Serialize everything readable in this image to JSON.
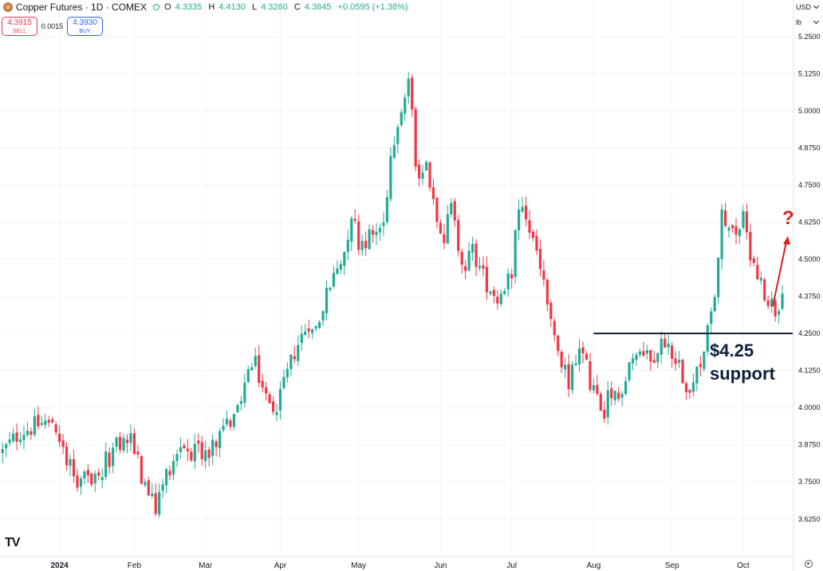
{
  "header": {
    "title": "Copper Futures · 1D · COMEX",
    "open_label": "O",
    "open": "4.3335",
    "high_label": "H",
    "high": "4.4130",
    "low_label": "L",
    "low": "4.3260",
    "close_label": "C",
    "close": "4.3845",
    "change": "+0.0595 (+1.38%)"
  },
  "trade": {
    "sell_price": "4.3915",
    "sell_label": "SELL",
    "spread": "0.0015",
    "buy_price": "4.3930",
    "buy_label": "BUY"
  },
  "controls": {
    "currency": "USD",
    "unit": "lb"
  },
  "colors": {
    "up": "#22ab94",
    "down": "#f23645",
    "grid": "#f0f3fa",
    "support": "#0d1f3c",
    "arrow": "#e21d1d"
  },
  "chart_data": {
    "type": "candlestick",
    "ylim": [
      3.58,
      5.275
    ],
    "y_ticks": [
      "5.2500",
      "5.1250",
      "5.0000",
      "4.8750",
      "4.7500",
      "4.6250",
      "4.5000",
      "4.3750",
      "4.2500",
      "4.1250",
      "4.0000",
      "3.8750",
      "3.7500",
      "3.6250"
    ],
    "x_labels": [
      {
        "label": "2024",
        "idx": 16,
        "bold": true
      },
      {
        "label": "Feb",
        "idx": 37
      },
      {
        "label": "Mar",
        "idx": 57
      },
      {
        "label": "Apr",
        "idx": 78
      },
      {
        "label": "May",
        "idx": 100
      },
      {
        "label": "Jun",
        "idx": 123
      },
      {
        "label": "Jul",
        "idx": 143
      },
      {
        "label": "Aug",
        "idx": 166
      },
      {
        "label": "Sep",
        "idx": 188
      },
      {
        "label": "Oct",
        "idx": 208
      }
    ],
    "support": {
      "value": 4.25,
      "from_idx": 166,
      "label_line1": "$4.25",
      "label_line2": "support"
    },
    "annotation": {
      "text": "?",
      "color": "#e21d1d"
    },
    "anchors": [
      [
        0,
        3.85
      ],
      [
        5,
        3.92
      ],
      [
        12,
        3.95
      ],
      [
        16,
        3.89
      ],
      [
        22,
        3.74
      ],
      [
        28,
        3.8
      ],
      [
        32,
        3.87
      ],
      [
        36,
        3.9
      ],
      [
        40,
        3.73
      ],
      [
        43,
        3.66
      ],
      [
        46,
        3.78
      ],
      [
        50,
        3.88
      ],
      [
        52,
        3.86
      ],
      [
        56,
        3.84
      ],
      [
        61,
        3.9
      ],
      [
        66,
        4.0
      ],
      [
        69,
        4.12
      ],
      [
        71,
        4.14
      ],
      [
        73,
        4.07
      ],
      [
        75,
        4.0
      ],
      [
        78,
        4.03
      ],
      [
        82,
        4.19
      ],
      [
        86,
        4.29
      ],
      [
        88,
        4.27
      ],
      [
        92,
        4.41
      ],
      [
        96,
        4.53
      ],
      [
        98,
        4.66
      ],
      [
        100,
        4.56
      ],
      [
        104,
        4.58
      ],
      [
        107,
        4.62
      ],
      [
        109,
        4.85
      ],
      [
        111,
        4.98
      ],
      [
        113,
        5.05
      ],
      [
        114,
        5.11
      ],
      [
        116,
        4.84
      ],
      [
        118,
        4.77
      ],
      [
        119,
        4.86
      ],
      [
        120,
        4.75
      ],
      [
        122,
        4.66
      ],
      [
        124,
        4.58
      ],
      [
        126,
        4.67
      ],
      [
        128,
        4.55
      ],
      [
        130,
        4.48
      ],
      [
        132,
        4.53
      ],
      [
        135,
        4.44
      ],
      [
        139,
        4.37
      ],
      [
        141,
        4.41
      ],
      [
        143,
        4.47
      ],
      [
        145,
        4.67
      ],
      [
        148,
        4.6
      ],
      [
        152,
        4.43
      ],
      [
        154,
        4.27
      ],
      [
        157,
        4.14
      ],
      [
        159,
        4.09
      ],
      [
        161,
        4.16
      ],
      [
        163,
        4.18
      ],
      [
        165,
        4.09
      ],
      [
        167,
        4.03
      ],
      [
        169,
        3.93
      ],
      [
        170,
        4.03
      ],
      [
        173,
        4.03
      ],
      [
        176,
        4.16
      ],
      [
        180,
        4.19
      ],
      [
        183,
        4.18
      ],
      [
        186,
        4.23
      ],
      [
        190,
        4.15
      ],
      [
        192,
        4.08
      ],
      [
        194,
        4.09
      ],
      [
        196,
        4.16
      ],
      [
        198,
        4.25
      ],
      [
        200,
        4.38
      ],
      [
        202,
        4.64
      ],
      [
        205,
        4.58
      ],
      [
        208,
        4.63
      ],
      [
        210,
        4.53
      ],
      [
        213,
        4.42
      ],
      [
        215,
        4.37
      ],
      [
        217,
        4.33
      ],
      [
        219,
        4.38
      ]
    ],
    "last_candle": {
      "open": 4.3335,
      "high": 4.413,
      "low": 4.326,
      "close": 4.3845
    }
  }
}
